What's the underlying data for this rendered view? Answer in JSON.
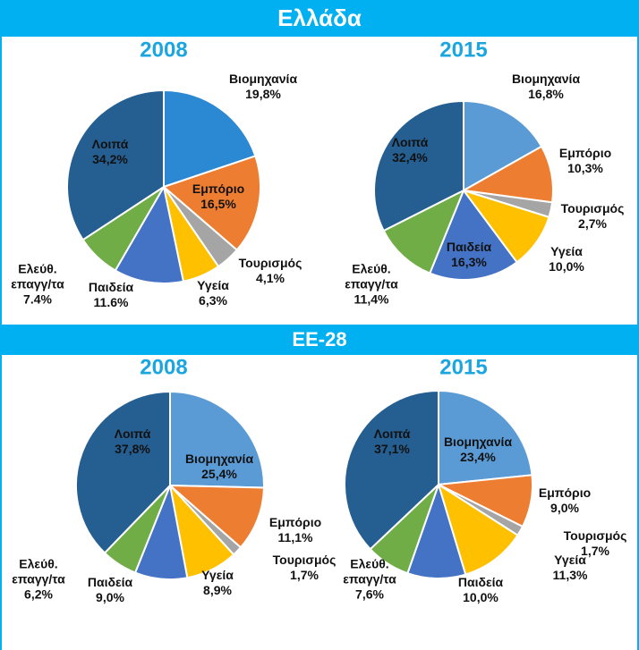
{
  "sections": [
    "Ελλάδα",
    "ΕΕ-28"
  ],
  "chart_data": [
    {
      "type": "pie",
      "title": "2008",
      "categories": [
        "Βιομηχανία",
        "Εμπόριο",
        "Τουρισμός",
        "Υγεία",
        "Παιδεία",
        "Ελεύθ.\nεπαγγ/τα",
        "Λοιπά"
      ],
      "values": [
        19.8,
        16.5,
        4.1,
        6.3,
        11.6,
        7.4,
        34.2
      ],
      "value_labels": [
        "19,8%",
        "16,5%",
        "4,1%",
        "6,3%",
        "11.6%",
        "7.4%",
        "34,2%"
      ],
      "colors": [
        "#2b88d3",
        "#ed7d31",
        "#a5a5a5",
        "#ffc000",
        "#4472c4",
        "#70ad47",
        "#255e91"
      ]
    },
    {
      "type": "pie",
      "title": "2015",
      "categories": [
        "Βιομηχανία",
        "Εμπόριο",
        "Τουρισμός",
        "Υγεία",
        "Παιδεία",
        "Ελεύθ.\nεπαγγ/τα",
        "Λοιπά"
      ],
      "values": [
        16.8,
        10.3,
        2.7,
        10.0,
        16.3,
        11.4,
        32.4
      ],
      "value_labels": [
        "16,8%",
        "10,3%",
        "2,7%",
        "10,0%",
        "16,3%",
        "11,4%",
        "32,4%"
      ],
      "colors": [
        "#5b9bd5",
        "#ed7d31",
        "#a5a5a5",
        "#ffc000",
        "#4472c4",
        "#70ad47",
        "#255e91"
      ]
    },
    {
      "type": "pie",
      "title": "2008",
      "categories": [
        "Βιομηχανία",
        "Εμπόριο",
        "Τουρισμός",
        "Υγεία",
        "Παιδεία",
        "Ελεύθ.\nεπαγγ/τα",
        "Λοιπά"
      ],
      "values": [
        25.4,
        11.1,
        1.7,
        8.9,
        9.0,
        6.2,
        37.8
      ],
      "value_labels": [
        "25,4%",
        "11,1%",
        "1,7%",
        "8,9%",
        "9,0%",
        "6,2%",
        "37,8%"
      ],
      "colors": [
        "#5b9bd5",
        "#ed7d31",
        "#a5a5a5",
        "#ffc000",
        "#4472c4",
        "#70ad47",
        "#255e91"
      ]
    },
    {
      "type": "pie",
      "title": "2015",
      "categories": [
        "Βιομηχανία",
        "Εμπόριο",
        "Τουρισμός",
        "Υγεία",
        "Παιδεία",
        "Ελεύθ.\nεπαγγ/τα",
        "Λοιπά"
      ],
      "values": [
        23.4,
        9.0,
        1.7,
        11.3,
        10.0,
        7.6,
        37.1
      ],
      "value_labels": [
        "23,4%",
        "9,0%",
        "1,7%",
        "11,3%",
        "10,0%",
        "7,6%",
        "37,1%"
      ],
      "colors": [
        "#5b9bd5",
        "#ed7d31",
        "#a5a5a5",
        "#ffc000",
        "#4472c4",
        "#70ad47",
        "#255e91"
      ]
    }
  ]
}
